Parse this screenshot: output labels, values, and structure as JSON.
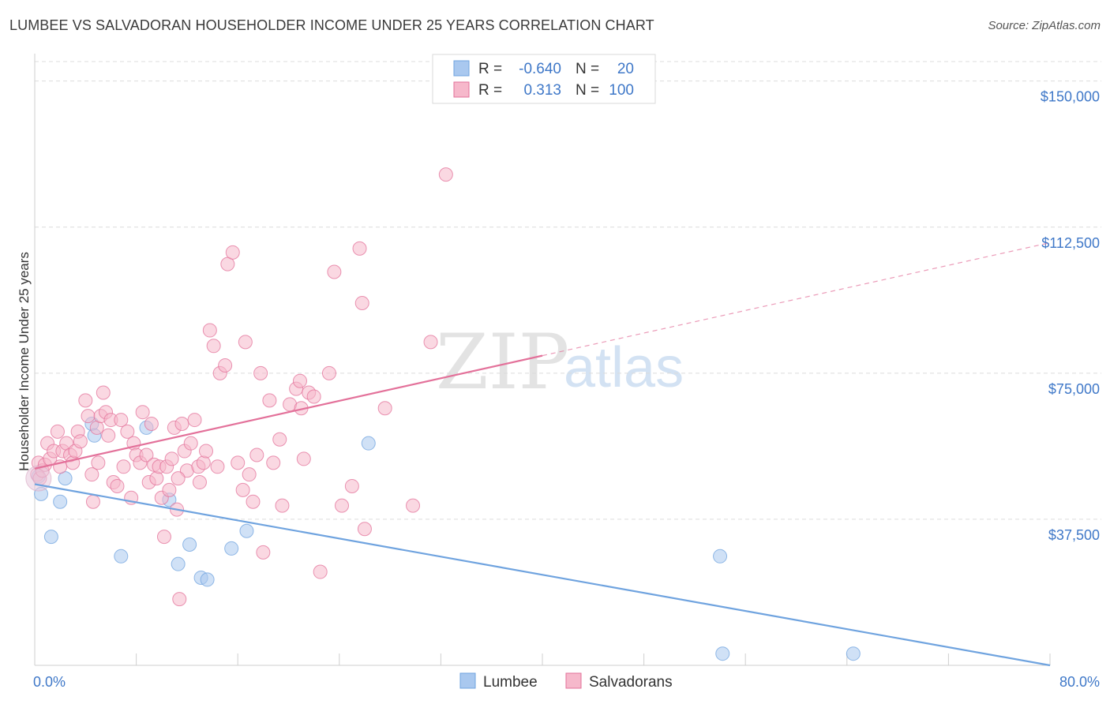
{
  "header": {
    "title": "LUMBEE VS SALVADORAN HOUSEHOLDER INCOME UNDER 25 YEARS CORRELATION CHART",
    "source": "Source: ZipAtlas.com"
  },
  "legend": {
    "rows": [
      {
        "r_label": "R =",
        "r_value": "-0.640",
        "n_label": "N =",
        "n_value": "20",
        "color": "#a9c8ef"
      },
      {
        "r_label": "R =",
        "r_value": "0.313",
        "n_label": "N =",
        "n_value": "100",
        "color": "#f6b8cb"
      }
    ]
  },
  "bottom_legend": {
    "items": [
      {
        "label": "Lumbee",
        "color": "#a9c8ef"
      },
      {
        "label": "Salvadorans",
        "color": "#f6b8cb"
      }
    ]
  },
  "watermark": {
    "zip": "ZIP",
    "atlas": "atlas"
  },
  "chart_data": {
    "type": "scatter",
    "ylabel": "Householder Income Under 25 years",
    "xlim": [
      0,
      80
    ],
    "ylim": [
      0,
      155000
    ],
    "x_tick_labels": [
      {
        "value": 0,
        "label": "0.0%"
      },
      {
        "value": 80,
        "label": "80.0%"
      }
    ],
    "y_ticks": [
      {
        "value": 37500,
        "label": "$37,500"
      },
      {
        "value": 75000,
        "label": "$75,000"
      },
      {
        "value": 112500,
        "label": "$112,500"
      },
      {
        "value": 150000,
        "label": "$150,000"
      }
    ],
    "grid": true,
    "series": [
      {
        "name": "Lumbee",
        "color": "#6fa3df",
        "fill": "#a9c8ef",
        "trend": {
          "x": [
            0,
            80
          ],
          "y": [
            46500,
            0
          ],
          "dashed_from": null
        },
        "points": [
          [
            0.3,
            48500
          ],
          [
            0.5,
            44000
          ],
          [
            1.3,
            33000
          ],
          [
            2.0,
            42000
          ],
          [
            2.4,
            48000
          ],
          [
            4.5,
            62000
          ],
          [
            4.7,
            59000
          ],
          [
            6.8,
            28000
          ],
          [
            8.8,
            61000
          ],
          [
            10.6,
            42500
          ],
          [
            11.3,
            26000
          ],
          [
            12.2,
            31000
          ],
          [
            13.1,
            22500
          ],
          [
            13.6,
            22000
          ],
          [
            15.5,
            30000
          ],
          [
            16.7,
            34500
          ],
          [
            26.3,
            57000
          ],
          [
            54.0,
            28000
          ],
          [
            54.2,
            3000
          ],
          [
            64.5,
            3000
          ]
        ]
      },
      {
        "name": "Salvadorans",
        "color": "#e3719a",
        "fill": "#f6b8cb",
        "trend": {
          "x": [
            0,
            80
          ],
          "y": [
            50500,
            108500
          ],
          "dashed_from": 40
        },
        "points": [
          [
            0.2,
            49000
          ],
          [
            0.3,
            52000
          ],
          [
            0.4,
            48000
          ],
          [
            0.6,
            50000
          ],
          [
            0.8,
            51500
          ],
          [
            1.0,
            57000
          ],
          [
            1.2,
            53000
          ],
          [
            1.5,
            55000
          ],
          [
            1.8,
            60000
          ],
          [
            2.0,
            51000
          ],
          [
            2.2,
            55000
          ],
          [
            2.5,
            57000
          ],
          [
            2.8,
            54000
          ],
          [
            3.0,
            52000
          ],
          [
            3.2,
            55000
          ],
          [
            3.4,
            60000
          ],
          [
            3.6,
            57500
          ],
          [
            4.0,
            68000
          ],
          [
            4.2,
            64000
          ],
          [
            4.5,
            49000
          ],
          [
            4.6,
            42000
          ],
          [
            4.9,
            61000
          ],
          [
            5.0,
            52000
          ],
          [
            5.2,
            64000
          ],
          [
            5.4,
            70000
          ],
          [
            5.6,
            65000
          ],
          [
            5.8,
            59000
          ],
          [
            6.0,
            63000
          ],
          [
            6.2,
            47000
          ],
          [
            6.5,
            46000
          ],
          [
            6.8,
            63000
          ],
          [
            7.0,
            51000
          ],
          [
            7.3,
            60000
          ],
          [
            7.6,
            43000
          ],
          [
            7.8,
            57000
          ],
          [
            8.0,
            54000
          ],
          [
            8.3,
            52000
          ],
          [
            8.5,
            65000
          ],
          [
            8.8,
            54000
          ],
          [
            9.0,
            47000
          ],
          [
            9.2,
            62000
          ],
          [
            9.4,
            51500
          ],
          [
            9.6,
            48000
          ],
          [
            9.8,
            51000
          ],
          [
            10.0,
            43000
          ],
          [
            10.2,
            33000
          ],
          [
            10.4,
            51000
          ],
          [
            10.6,
            45000
          ],
          [
            10.8,
            53000
          ],
          [
            11.0,
            61000
          ],
          [
            11.2,
            40000
          ],
          [
            11.4,
            17000
          ],
          [
            11.6,
            62000
          ],
          [
            11.8,
            55000
          ],
          [
            12.0,
            50000
          ],
          [
            12.3,
            57000
          ],
          [
            12.6,
            63000
          ],
          [
            12.9,
            51000
          ],
          [
            13.0,
            47000
          ],
          [
            13.3,
            52000
          ],
          [
            13.5,
            55000
          ],
          [
            13.8,
            86000
          ],
          [
            14.1,
            82000
          ],
          [
            14.4,
            51000
          ],
          [
            14.6,
            75000
          ],
          [
            15.0,
            77000
          ],
          [
            15.2,
            103000
          ],
          [
            15.6,
            106000
          ],
          [
            16.0,
            52000
          ],
          [
            16.4,
            45000
          ],
          [
            16.6,
            83000
          ],
          [
            16.9,
            49000
          ],
          [
            17.2,
            42000
          ],
          [
            17.5,
            54000
          ],
          [
            17.8,
            75000
          ],
          [
            18.0,
            29000
          ],
          [
            18.5,
            68000
          ],
          [
            18.8,
            52000
          ],
          [
            19.3,
            58000
          ],
          [
            19.5,
            41000
          ],
          [
            20.1,
            67000
          ],
          [
            20.6,
            71000
          ],
          [
            20.9,
            73000
          ],
          [
            21.2,
            53000
          ],
          [
            21.6,
            70000
          ],
          [
            22.0,
            69000
          ],
          [
            22.5,
            24000
          ],
          [
            23.2,
            75000
          ],
          [
            23.6,
            101000
          ],
          [
            24.2,
            41000
          ],
          [
            25.0,
            46000
          ],
          [
            25.6,
            107000
          ],
          [
            25.8,
            93000
          ],
          [
            26.0,
            35000
          ],
          [
            27.6,
            66000
          ],
          [
            29.8,
            41000
          ],
          [
            31.2,
            83000
          ],
          [
            32.4,
            126000
          ],
          [
            21.0,
            66000
          ],
          [
            11.3,
            48000
          ]
        ]
      }
    ]
  }
}
